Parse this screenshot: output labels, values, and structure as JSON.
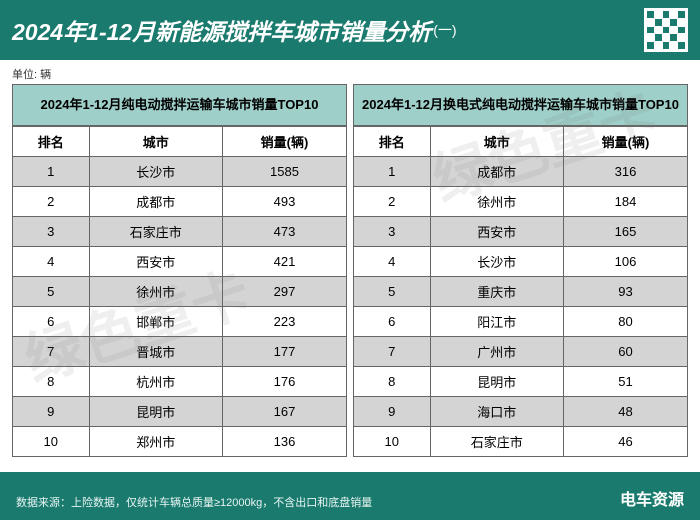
{
  "colors": {
    "header_bg": "#1a7a6e",
    "header_fg": "#ffffff",
    "table_header_bg": "#9ecfc8",
    "row_odd_bg": "#d4d4d4",
    "row_even_bg": "#ffffff",
    "footer_bg": "#1a7a6e"
  },
  "header": {
    "title_main": "2024年1-12月新能源搅拌车城市销量分析",
    "title_suffix": "(一)"
  },
  "unit_label": "单位: 辆",
  "left_table": {
    "title": "2024年1-12月纯电动搅拌运输车城市销量TOP10",
    "columns": [
      "排名",
      "城市",
      "销量(辆)"
    ],
    "rows": [
      [
        "1",
        "长沙市",
        "1585"
      ],
      [
        "2",
        "成都市",
        "493"
      ],
      [
        "3",
        "石家庄市",
        "473"
      ],
      [
        "4",
        "西安市",
        "421"
      ],
      [
        "5",
        "徐州市",
        "297"
      ],
      [
        "6",
        "邯郸市",
        "223"
      ],
      [
        "7",
        "晋城市",
        "177"
      ],
      [
        "8",
        "杭州市",
        "176"
      ],
      [
        "9",
        "昆明市",
        "167"
      ],
      [
        "10",
        "郑州市",
        "136"
      ]
    ]
  },
  "right_table": {
    "title": "2024年1-12月换电式纯电动搅拌运输车城市销量TOP10",
    "columns": [
      "排名",
      "城市",
      "销量(辆)"
    ],
    "rows": [
      [
        "1",
        "成都市",
        "316"
      ],
      [
        "2",
        "徐州市",
        "184"
      ],
      [
        "3",
        "西安市",
        "165"
      ],
      [
        "4",
        "长沙市",
        "106"
      ],
      [
        "5",
        "重庆市",
        "93"
      ],
      [
        "6",
        "阳江市",
        "80"
      ],
      [
        "7",
        "广州市",
        "60"
      ],
      [
        "8",
        "昆明市",
        "51"
      ],
      [
        "9",
        "海口市",
        "48"
      ],
      [
        "10",
        "石家庄市",
        "46"
      ]
    ]
  },
  "footer": {
    "source": "数据来源：上险数据，仅统计车辆总质量≥12000kg，不含出口和底盘销量",
    "logo": "电车资源"
  },
  "watermark": "绿色重卡"
}
